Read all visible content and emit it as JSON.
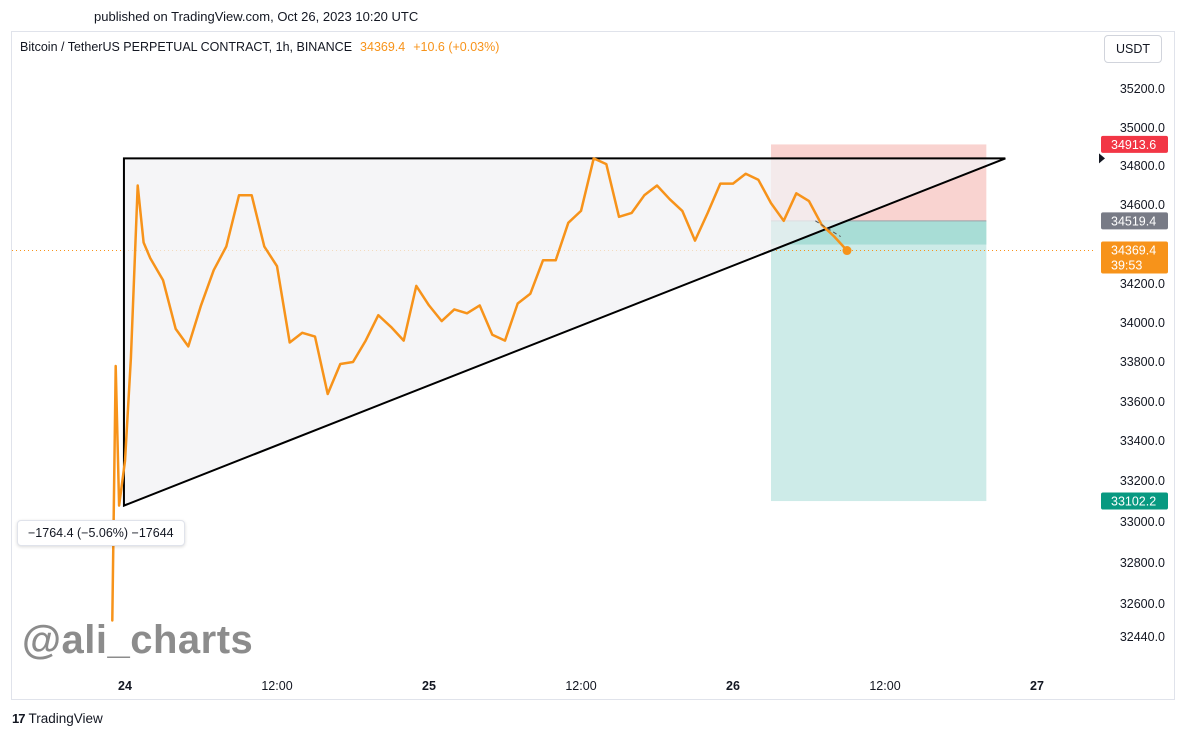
{
  "header": {
    "published": "published on TradingView.com, Oct 26, 2023 10:20 UTC"
  },
  "legend": {
    "symbol": "Bitcoin / TetherUS PERPETUAL CONTRACT, 1h, BINANCE",
    "price": "34369.4",
    "change": "+10.6 (+0.03%)"
  },
  "currency_button": "USDT",
  "measure_label": "−1764.4 (−5.06%) −17644",
  "watermark": "@ali_charts",
  "brand": {
    "logo": "17",
    "name": "TradingView"
  },
  "colors": {
    "price_line": "#f7931a",
    "stop_zone": "#f9d3d0",
    "target_zone": "#cdebe8",
    "stop_tag": "#f23645",
    "target_tag": "#089981",
    "entry_tag": "#787b86",
    "triangle_fill": "#f1f2f4",
    "triangle_stroke": "#000000"
  },
  "chart_data": {
    "type": "line",
    "title": "Bitcoin / TetherUS PERPETUAL CONTRACT, 1h, BINANCE",
    "xlabel": "",
    "ylabel": "",
    "ylim": [
      32380,
      35320
    ],
    "xlim": [
      "Oct 23 21:00",
      "Oct 27 04:00"
    ],
    "grid": false,
    "x_ticks": [
      {
        "label": "24",
        "time": "2023-10-24 00:00",
        "major": true
      },
      {
        "label": "12:00",
        "time": "2023-10-24 12:00",
        "major": false
      },
      {
        "label": "25",
        "time": "2023-10-25 00:00",
        "major": true
      },
      {
        "label": "12:00",
        "time": "2023-10-25 12:00",
        "major": false
      },
      {
        "label": "26",
        "time": "2023-10-26 00:00",
        "major": true
      },
      {
        "label": "12:00",
        "time": "2023-10-26 12:00",
        "major": false
      },
      {
        "label": "27",
        "time": "2023-10-27 00:00",
        "major": true
      }
    ],
    "y_ticks": [
      35200.0,
      35000.0,
      34800.0,
      34600.0,
      34200.0,
      34000.0,
      33800.0,
      33600.0,
      33400.0,
      33200.0,
      33000.0,
      32800.0,
      32600.0,
      32440.0
    ],
    "y_tick_labels": [
      "35200.0",
      "35000.0",
      "34800.0",
      "34600.0",
      "34200.0",
      "34000.0",
      "33800.0",
      "33600.0",
      "33400.0",
      "33200.0",
      "33000.0",
      "32800.0",
      "32600.0",
      "32440.0"
    ],
    "series": [
      {
        "values_note": "",
        "x": [
          "2023-10-23 23:00",
          "2023-10-23 23:16",
          "2023-10-23 23:32",
          "2023-10-24 00:00",
          "2023-10-24 00:28",
          "2023-10-24 01:00",
          "2023-10-24 01:28",
          "2023-10-24 02:00",
          "2023-10-24 03:00",
          "2023-10-24 04:00",
          "2023-10-24 05:00",
          "2023-10-24 06:00",
          "2023-10-24 07:00",
          "2023-10-24 08:00",
          "2023-10-24 09:00",
          "2023-10-24 10:00",
          "2023-10-24 11:00",
          "2023-10-24 12:00",
          "2023-10-24 13:00",
          "2023-10-24 14:00",
          "2023-10-24 15:00",
          "2023-10-24 16:00",
          "2023-10-24 17:00",
          "2023-10-24 18:00",
          "2023-10-24 19:00",
          "2023-10-24 20:00",
          "2023-10-24 21:00",
          "2023-10-24 22:00",
          "2023-10-24 23:00",
          "2023-10-25 00:00",
          "2023-10-25 01:00",
          "2023-10-25 02:00",
          "2023-10-25 03:00",
          "2023-10-25 04:00",
          "2023-10-25 05:00",
          "2023-10-25 06:00",
          "2023-10-25 07:00",
          "2023-10-25 08:00",
          "2023-10-25 09:00",
          "2023-10-25 10:00",
          "2023-10-25 11:00",
          "2023-10-25 12:00",
          "2023-10-25 13:00",
          "2023-10-25 14:00",
          "2023-10-25 15:00",
          "2023-10-25 16:00",
          "2023-10-25 17:00",
          "2023-10-25 18:00",
          "2023-10-25 19:00",
          "2023-10-25 20:00",
          "2023-10-25 21:00",
          "2023-10-25 22:00",
          "2023-10-25 23:00",
          "2023-10-26 00:00",
          "2023-10-26 01:00",
          "2023-10-26 02:00",
          "2023-10-26 03:00",
          "2023-10-26 04:00",
          "2023-10-26 05:00",
          "2023-10-26 06:00",
          "2023-10-26 07:00",
          "2023-10-26 08:00",
          "2023-10-26 09:00"
        ],
        "values": [
          32520,
          33780,
          33080,
          33300,
          33820,
          34700,
          34410,
          34330,
          34220,
          33970,
          33880,
          34090,
          34270,
          34390,
          34650,
          34650,
          34390,
          34290,
          33900,
          33950,
          33930,
          33640,
          33790,
          33800,
          33910,
          34040,
          33980,
          33910,
          34190,
          34090,
          34010,
          34070,
          34050,
          34090,
          33940,
          33910,
          34100,
          34150,
          34320,
          34320,
          34510,
          34570,
          34840,
          34810,
          34540,
          34560,
          34650,
          34700,
          34630,
          34570,
          34420,
          34560,
          34710,
          34710,
          34760,
          34730,
          34610,
          34520,
          34660,
          34620,
          34500,
          34440,
          34369.4
        ]
      }
    ],
    "annotations": {
      "triangle": {
        "apex_time": "2023-10-23 23:55",
        "apex_price": 33080,
        "top_price": 34840,
        "top_end_time": "2023-10-26 21:30"
      },
      "dashed_move": {
        "from_price": 34520,
        "to_price": 34440
      },
      "position": {
        "start_time": "2023-10-26 03:00",
        "end_time": "2023-10-26 20:00",
        "stop": 34913.6,
        "entry": 34519.4,
        "target": 33102.2,
        "current": 34369.4
      },
      "measure": {
        "from_price": 34840,
        "to_price": 33080,
        "label": "−1764.4 (−5.06%) −17644"
      }
    },
    "price_tags": [
      {
        "label": "34913.6",
        "price": 34913.6,
        "color": "#f23645"
      },
      {
        "label": "34519.4",
        "price": 34519.4,
        "color": "#787b86"
      },
      {
        "label": "34369.4",
        "price": 34369.4,
        "color": "#f7931a",
        "sub": "39:53"
      },
      {
        "label": "33102.2",
        "price": 33102.2,
        "color": "#089981"
      }
    ]
  }
}
